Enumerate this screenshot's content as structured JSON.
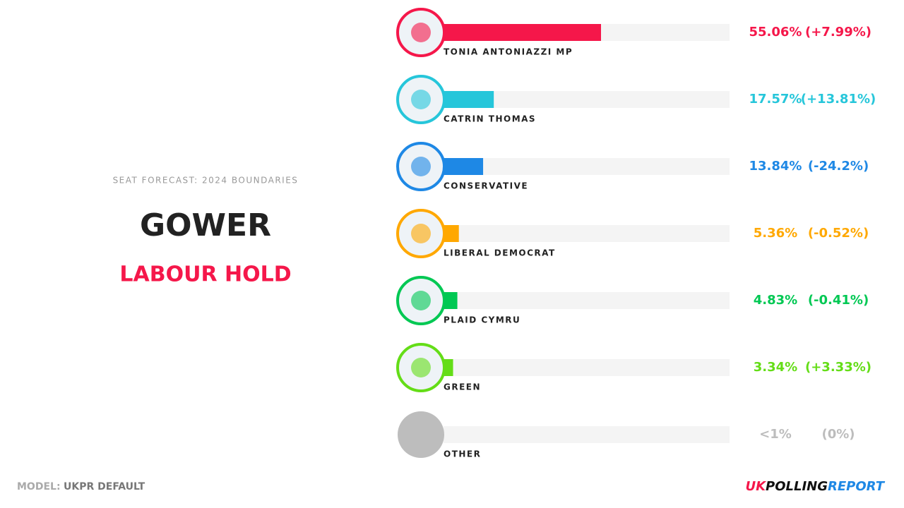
{
  "chart_data": {
    "type": "bar",
    "orientation": "horizontal",
    "subtitle": "SEAT FORECAST: 2024 BOUNDARIES",
    "title": "GOWER",
    "result": "LABOUR HOLD",
    "result_color": "#f5174a",
    "categories": [
      "TONIA ANTONIAZZI MP",
      "CATRIN THOMAS",
      "CONSERVATIVE",
      "LIBERAL DEMOCRAT",
      "PLAID CYMRU",
      "GREEN",
      "OTHER"
    ],
    "values": [
      55.06,
      17.57,
      13.84,
      5.36,
      4.83,
      3.34,
      null
    ],
    "value_labels": [
      "55.06%",
      "17.57%",
      "13.84%",
      "5.36%",
      "4.83%",
      "3.34%",
      "<1%"
    ],
    "change_labels": [
      "(+7.99%)",
      "(+13.81%)",
      "(-24.2%)",
      "(-0.52%)",
      "(-0.41%)",
      "(+3.33%)",
      "(0%)"
    ],
    "colors": [
      "#f5174a",
      "#26c6da",
      "#1e88e5",
      "#ffa800",
      "#00c853",
      "#64dd17",
      "#bdbdbd"
    ],
    "xlim": [
      0,
      100
    ],
    "model_label": "MODEL:",
    "model": "UKPR DEFAULT",
    "brand": [
      "UK",
      "POLLING",
      "REPORT"
    ],
    "brand_colors": [
      "#f5174a",
      "#111111",
      "#1e88e5"
    ]
  }
}
